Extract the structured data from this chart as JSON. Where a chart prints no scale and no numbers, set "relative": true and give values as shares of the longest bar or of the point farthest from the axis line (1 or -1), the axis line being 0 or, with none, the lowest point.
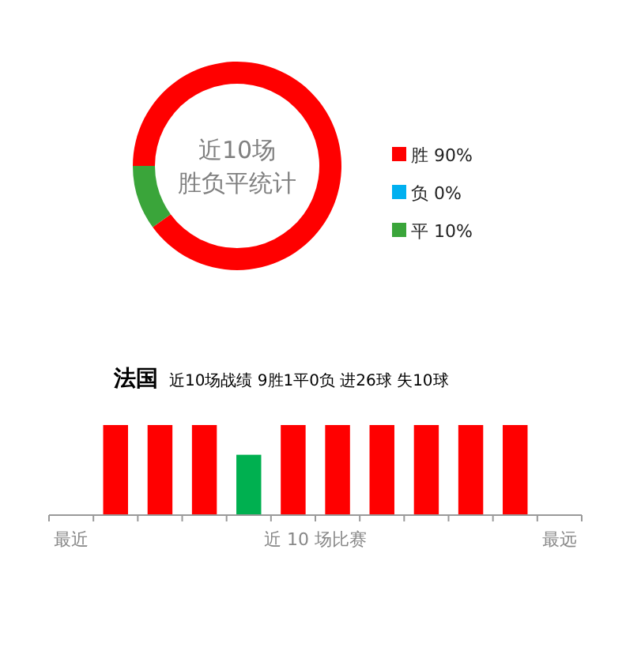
{
  "chart_data": [
    {
      "type": "donut",
      "title": "近10场",
      "subtitle": "胜负平统计",
      "categories": [
        "胜",
        "负",
        "平"
      ],
      "values": [
        90,
        0,
        10
      ],
      "colors": [
        "#ff0000",
        "#00b0f0",
        "#3aa53a"
      ],
      "value_labels": [
        "90%",
        "0%",
        "10%"
      ],
      "legend": "right"
    },
    {
      "type": "bar",
      "title": "法国",
      "subtitle": "近10场战绩 9胜1平0负 进26球 失10球",
      "xlabel": "近 10 场比赛",
      "relative": true,
      "categories": [
        "最近",
        null,
        null,
        null,
        null,
        null,
        null,
        null,
        null,
        null,
        null,
        "最远"
      ],
      "values": [
        null,
        1,
        1,
        1,
        0.67,
        1,
        1,
        1,
        1,
        1,
        1,
        null
      ],
      "colors": [
        null,
        "#ff0000",
        "#ff0000",
        "#ff0000",
        "#00b050",
        "#ff0000",
        "#ff0000",
        "#ff0000",
        "#ff0000",
        "#ff0000",
        "#ff0000",
        null
      ],
      "grid": false
    }
  ]
}
